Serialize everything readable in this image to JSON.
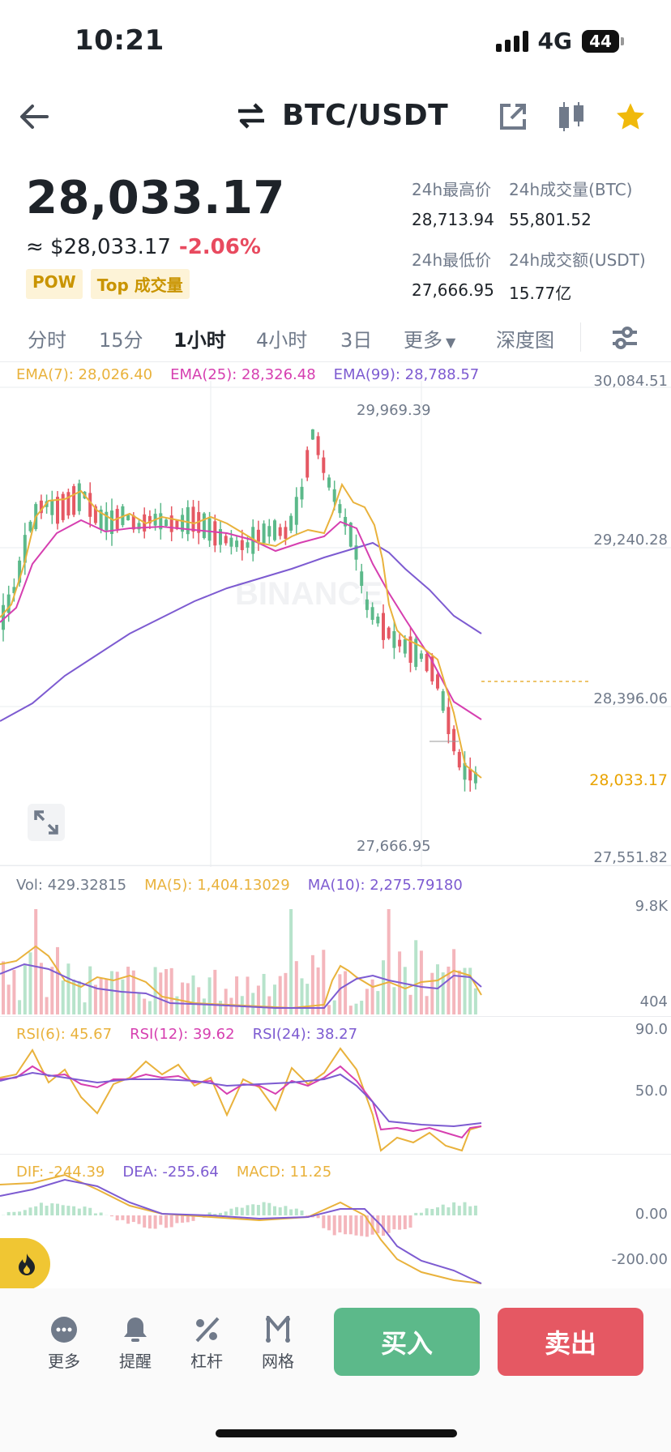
{
  "status_bar": {
    "time": "10:21",
    "network": "4G",
    "battery": "44"
  },
  "header": {
    "pair": "BTC/USDT"
  },
  "ticker": {
    "price": "28,033.17",
    "fiat": "≈ $28,033.17",
    "change": "-2.06%",
    "tags": [
      "POW",
      "Top 成交量"
    ],
    "stats": {
      "high_label": "24h最高价",
      "high": "28,713.94",
      "vol_btc_label": "24h成交量(BTC)",
      "vol_btc": "55,801.52",
      "low_label": "24h最低价",
      "low": "27,666.95",
      "vol_usdt_label": "24h成交额(USDT)",
      "vol_usdt": "15.77亿"
    }
  },
  "tabs": [
    "分时",
    "15分",
    "1小时",
    "4小时",
    "3日",
    "更多",
    "深度图"
  ],
  "active_tab": "1小时",
  "chart": {
    "ema7": "EMA(7): 28,026.40",
    "ema25": "EMA(25): 28,326.48",
    "ema99": "EMA(99): 28,788.57",
    "axis": [
      "30,084.51",
      "29,240.28",
      "28,396.06",
      "27,551.82"
    ],
    "current_price_label": "28,033.17",
    "high_marker": "29,969.39",
    "low_marker": "27,666.95",
    "watermark": "BINANCE",
    "colors": {
      "up": "#5cb98a",
      "down": "#e55863",
      "ema7": "#e9b23c",
      "ema25": "#d63fb0",
      "ema99": "#7d5bd1"
    }
  },
  "volume": {
    "vol": "Vol: 429.32815",
    "ma5": "MA(5): 1,404.13029",
    "ma10": "MA(10): 2,275.79180",
    "axis_top": "9.8K",
    "axis_bottom": "404"
  },
  "rsi": {
    "rsi6": "RSI(6): 45.67",
    "rsi12": "RSI(12): 39.62",
    "rsi24": "RSI(24): 38.27",
    "axis_top": "90.0",
    "axis_mid": "50.0"
  },
  "macd": {
    "dif": "DIF: -244.39",
    "dea": "DEA: -255.64",
    "macd": "MACD: 11.25",
    "axis_top": "0.00",
    "axis_mid": "-200.00"
  },
  "bottom": {
    "more": "更多",
    "alert": "提醒",
    "leverage": "杠杆",
    "grid": "网格",
    "buy": "买入",
    "sell": "卖出"
  }
}
